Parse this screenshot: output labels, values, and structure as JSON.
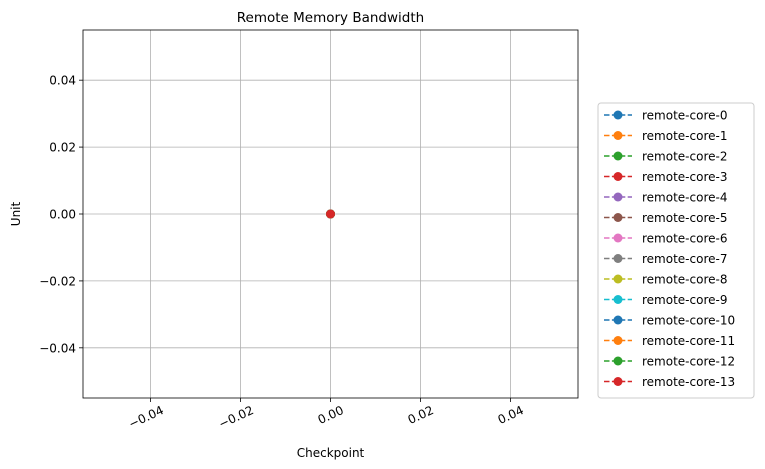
{
  "chart_data": {
    "type": "line",
    "title": "Remote Memory Bandwidth",
    "xlabel": "Checkpoint",
    "ylabel": "Unit",
    "xlim": [
      -0.055,
      0.055
    ],
    "ylim": [
      -0.055,
      0.055
    ],
    "xticks": [
      -0.04,
      -0.02,
      0.0,
      0.02,
      0.04
    ],
    "xtick_labels": [
      "−0.04",
      "−0.02",
      "0.00",
      "0.02",
      "0.04"
    ],
    "yticks": [
      0.04,
      0.02,
      0.0,
      -0.02,
      -0.04
    ],
    "ytick_labels": [
      "0.04",
      "0.02",
      "0.00",
      "−0.02",
      "−0.04"
    ],
    "grid": true,
    "legend_position": "outside-right",
    "series": [
      {
        "name": "remote-core-0",
        "color": "#1f77b4",
        "x": [
          0
        ],
        "y": [
          0
        ]
      },
      {
        "name": "remote-core-1",
        "color": "#ff7f0e",
        "x": [
          0
        ],
        "y": [
          0
        ]
      },
      {
        "name": "remote-core-2",
        "color": "#2ca02c",
        "x": [
          0
        ],
        "y": [
          0
        ]
      },
      {
        "name": "remote-core-3",
        "color": "#d62728",
        "x": [
          0
        ],
        "y": [
          0
        ]
      },
      {
        "name": "remote-core-4",
        "color": "#9467bd",
        "x": [
          0
        ],
        "y": [
          0
        ]
      },
      {
        "name": "remote-core-5",
        "color": "#8c564b",
        "x": [
          0
        ],
        "y": [
          0
        ]
      },
      {
        "name": "remote-core-6",
        "color": "#e377c2",
        "x": [
          0
        ],
        "y": [
          0
        ]
      },
      {
        "name": "remote-core-7",
        "color": "#7f7f7f",
        "x": [
          0
        ],
        "y": [
          0
        ]
      },
      {
        "name": "remote-core-8",
        "color": "#bcbd22",
        "x": [
          0
        ],
        "y": [
          0
        ]
      },
      {
        "name": "remote-core-9",
        "color": "#17becf",
        "x": [
          0
        ],
        "y": [
          0
        ]
      },
      {
        "name": "remote-core-10",
        "color": "#1f77b4",
        "x": [
          0
        ],
        "y": [
          0
        ]
      },
      {
        "name": "remote-core-11",
        "color": "#ff7f0e",
        "x": [
          0
        ],
        "y": [
          0
        ]
      },
      {
        "name": "remote-core-12",
        "color": "#2ca02c",
        "x": [
          0
        ],
        "y": [
          0
        ]
      },
      {
        "name": "remote-core-13",
        "color": "#d62728",
        "x": [
          0
        ],
        "y": [
          0
        ]
      }
    ]
  }
}
